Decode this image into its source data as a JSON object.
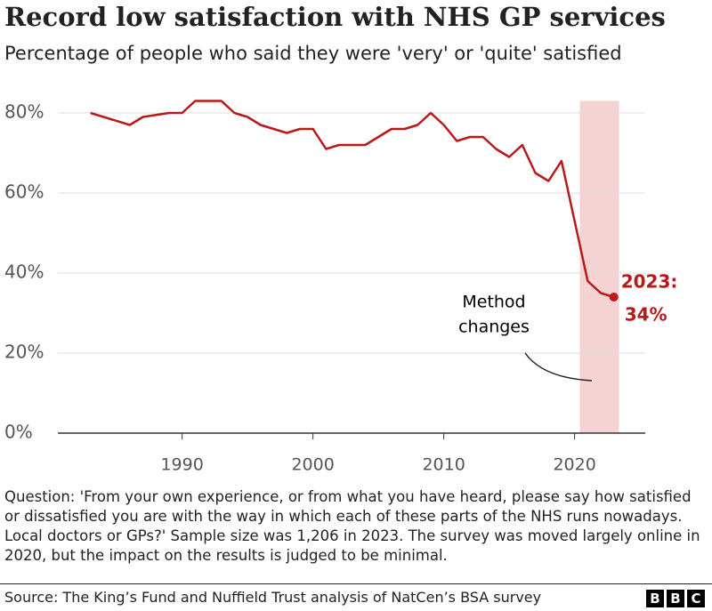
{
  "chart_data": {
    "type": "line",
    "title": "Record low satisfaction with NHS GP services",
    "subtitle": "Percentage of people who said they were 'very' or 'quite' satisfied",
    "x": [
      1983,
      1984,
      1986,
      1987,
      1989,
      1990,
      1991,
      1993,
      1994,
      1995,
      1996,
      1998,
      1999,
      2000,
      2001,
      2002,
      2003,
      2004,
      2005,
      2006,
      2007,
      2008,
      2009,
      2010,
      2011,
      2012,
      2013,
      2014,
      2015,
      2016,
      2017,
      2018,
      2019,
      2020,
      2021,
      2022,
      2023
    ],
    "series": [
      {
        "name": "Satisfied",
        "color": "#bb1919",
        "values": [
          80,
          79,
          77,
          79,
          80,
          80,
          83,
          83,
          80,
          79,
          77,
          75,
          76,
          76,
          71,
          72,
          72,
          72,
          74,
          76,
          76,
          77,
          80,
          77,
          73,
          74,
          74,
          71,
          69,
          72,
          65,
          63,
          68,
          53,
          38,
          35,
          34
        ]
      }
    ],
    "xlim": [
      1980.5,
      2025.4
    ],
    "xticks": [
      1990,
      2000,
      2010,
      2020
    ],
    "ylim": [
      0,
      83
    ],
    "yticks": [
      {
        "value": 0,
        "label": "0%"
      },
      {
        "value": 20,
        "label": "20%"
      },
      {
        "value": 40,
        "label": "40%"
      },
      {
        "value": 60,
        "label": "60%"
      },
      {
        "value": 80,
        "label": "80%"
      }
    ],
    "grid": true,
    "shaded_range": [
      2020.4,
      2023.4
    ],
    "shaded_label": [
      "Method",
      "changes"
    ],
    "end_label": [
      "2023:",
      "34%"
    ],
    "note": "Question: 'From your own experience, or from what you have heard, please say how satisfied or dissatisfied you are with the way in which each of these parts of the NHS runs nowadays. Local doctors or GPs?' Sample size was 1,206 in 2023. The survey was moved largely online in 2020, but the impact on the results is judged to be minimal.",
    "source": "Source: The King’s Fund and Nuffield Trust analysis of NatCen’s BSA survey",
    "brand": [
      "B",
      "B",
      "C"
    ]
  }
}
